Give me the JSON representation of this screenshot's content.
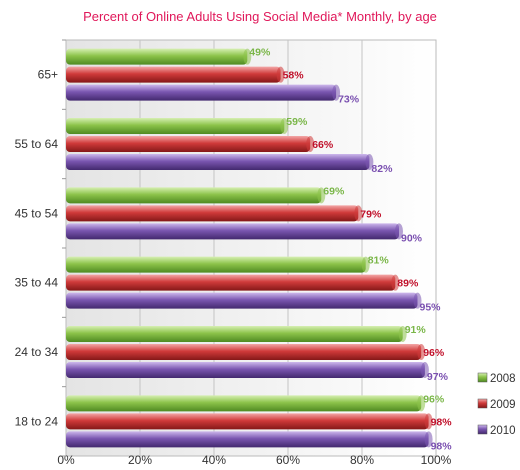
{
  "chart_data": {
    "type": "bar",
    "orientation": "horizontal",
    "title": "Percent of Online Adults Using Social Media* Monthly, by age",
    "title_color": "#e0185a",
    "categories": [
      "65+",
      "55 to 64",
      "45 to 54",
      "35 to 44",
      "24 to 34",
      "18 to 24"
    ],
    "series": [
      {
        "name": "2008",
        "color": "#8cc34a",
        "label_color": "#7ab648",
        "values": [
          49,
          59,
          69,
          81,
          91,
          96
        ],
        "labels": [
          "49%",
          "59%",
          "69%",
          "81%",
          "91%",
          "96%"
        ]
      },
      {
        "name": "2009",
        "color": "#d03a3a",
        "label_color": "#c0102a",
        "values": [
          58,
          66,
          79,
          89,
          96,
          98
        ],
        "labels": [
          "58%",
          "66%",
          "79%",
          "89%",
          "96%",
          "98%"
        ]
      },
      {
        "name": "2010",
        "color": "#7a56b0",
        "label_color": "#7a50b0",
        "values": [
          73,
          82,
          90,
          95,
          97,
          98
        ],
        "labels": [
          "73%",
          "82%",
          "90%",
          "95%",
          "97%",
          "98%"
        ]
      }
    ],
    "x_ticks": [
      "0%",
      "20%",
      "40%",
      "60%",
      "80%",
      "100%"
    ],
    "xlim": [
      0,
      100
    ],
    "grid": true,
    "legend_position": "bottom-right"
  }
}
